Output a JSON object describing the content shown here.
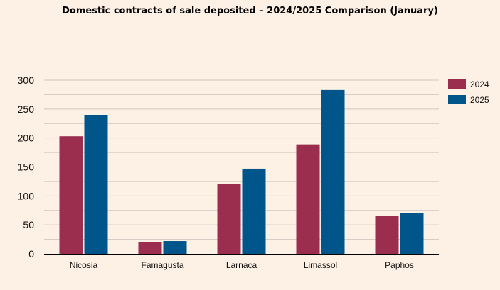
{
  "chart_data": {
    "type": "bar",
    "title": "Domestic contracts of sale deposited – 2024/2025 Comparison (January)",
    "xlabel": "",
    "ylabel": "",
    "categories": [
      "Nicosia",
      "Famagusta",
      "Larnaca",
      "Limassol",
      "Paphos"
    ],
    "series": [
      {
        "name": "2024",
        "color": "#9b2d4f",
        "values": [
          203,
          20,
          120,
          189,
          65
        ]
      },
      {
        "name": "2025",
        "color": "#00558a",
        "values": [
          240,
          22,
          147,
          283,
          70
        ]
      }
    ],
    "ylim": [
      0,
      300
    ],
    "yticks": [
      0,
      50,
      100,
      150,
      200,
      250,
      300
    ],
    "minor_gridlines_step": 25,
    "grid": true,
    "legend_position": "right"
  }
}
